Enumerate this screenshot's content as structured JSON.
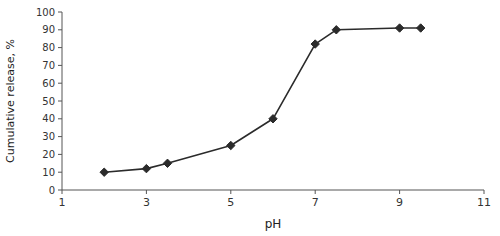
{
  "chart_data": {
    "type": "line",
    "xlabel": "pH",
    "ylabel": "Cumulative release, %",
    "x": [
      2,
      3,
      3.5,
      5,
      6,
      7,
      7.5,
      9,
      9.5
    ],
    "values": [
      10,
      12,
      15,
      25,
      40,
      82,
      90,
      91,
      91
    ],
    "color": "#2b2b2b",
    "marker": "diamond",
    "xlim": [
      1,
      11
    ],
    "ylim": [
      0,
      100
    ],
    "xticks": [
      1,
      3,
      5,
      7,
      9,
      11
    ],
    "yticks": [
      0,
      10,
      20,
      30,
      40,
      50,
      60,
      70,
      80,
      90,
      100
    ]
  }
}
